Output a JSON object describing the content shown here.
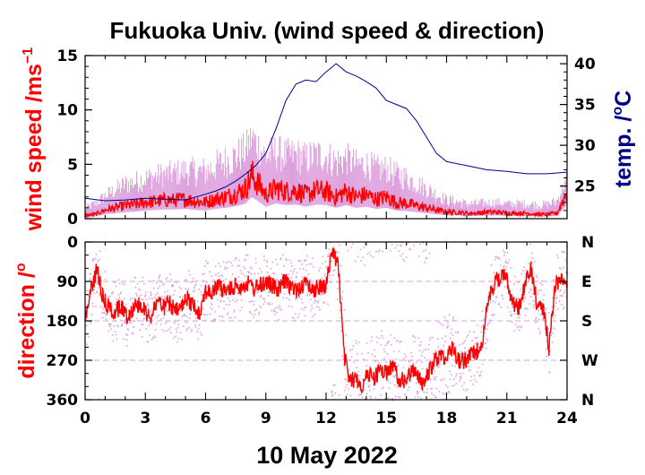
{
  "chart_data": [
    {
      "type": "line",
      "panel": "top",
      "title": "Fukuoka Univ. (wind speed & direction)",
      "ylabel": "wind speed /ms",
      "ylabel_superscript": "−1",
      "ylabel_right": "temp. /",
      "ylabel_right_superscript": "o",
      "ylabel_right_unit": "C",
      "xlim": [
        0,
        24
      ],
      "ylim": [
        0,
        15
      ],
      "ylim_right": [
        21,
        41
      ],
      "yticks": [
        "0",
        "5",
        "10",
        "15"
      ],
      "yticks_right": [
        "25",
        "30",
        "35",
        "40"
      ],
      "grid": false,
      "series": [
        {
          "role": "wind speed gust (spread)",
          "color": "#dda0dd",
          "x": [
            0,
            1,
            2,
            3,
            4,
            5,
            6,
            7,
            8,
            9,
            10,
            11,
            12,
            13,
            14,
            15,
            16,
            17,
            18,
            19,
            20,
            21,
            22,
            23,
            24
          ],
          "y": [
            1.5,
            3.0,
            4.5,
            5.0,
            5.5,
            6.0,
            6.5,
            7.5,
            8.0,
            8.0,
            7.5,
            7.5,
            7.5,
            7.0,
            6.5,
            6.0,
            5.5,
            4.0,
            2.5,
            2.0,
            2.0,
            2.0,
            2.0,
            2.0,
            3.0
          ]
        },
        {
          "role": "wind speed",
          "color": "#ff0000",
          "x": [
            0,
            0.5,
            1,
            1.5,
            2,
            2.5,
            3,
            3.5,
            4,
            4.5,
            5,
            5.5,
            6,
            6.5,
            7,
            7.5,
            8,
            8.3,
            8.7,
            9,
            9.5,
            10,
            10.5,
            11,
            11.5,
            12,
            12.5,
            13,
            13.5,
            14,
            14.5,
            15,
            15.5,
            16,
            16.5,
            17,
            17.5,
            18,
            18.5,
            19,
            19.5,
            20,
            20.5,
            21,
            21.5,
            22,
            22.5,
            23,
            23.5,
            24
          ],
          "y": [
            0.3,
            0.4,
            0.8,
            1.0,
            1.2,
            1.3,
            1.5,
            1.6,
            1.7,
            1.7,
            1.8,
            1.6,
            1.5,
            1.8,
            2.0,
            2.3,
            2.8,
            4.0,
            3.0,
            2.2,
            2.8,
            2.5,
            2.6,
            2.2,
            2.6,
            2.5,
            2.0,
            2.5,
            2.0,
            2.2,
            1.8,
            2.0,
            1.5,
            1.4,
            1.2,
            1.0,
            0.8,
            0.6,
            0.6,
            0.5,
            0.5,
            0.6,
            0.6,
            0.5,
            0.5,
            0.5,
            0.4,
            0.4,
            0.5,
            2.5
          ]
        },
        {
          "role": "temperature",
          "axis": "right",
          "color": "#00008b",
          "x": [
            0,
            1,
            2,
            3,
            4,
            5,
            6,
            6.5,
            7,
            7.5,
            8,
            8.5,
            9,
            9.5,
            10,
            10.5,
            11,
            11.5,
            12,
            12.5,
            13,
            13.5,
            14,
            14.5,
            15,
            15.5,
            16,
            16.5,
            17,
            17.5,
            18,
            19,
            20,
            21,
            22,
            23,
            24
          ],
          "y": [
            23.5,
            23.2,
            23.3,
            23.5,
            23.4,
            23.3,
            24.0,
            24.4,
            24.9,
            25.6,
            26.5,
            27.5,
            29.0,
            32.0,
            35.5,
            37.5,
            38.0,
            37.8,
            39.0,
            40.0,
            39.0,
            38.5,
            37.8,
            37.0,
            35.5,
            35.0,
            34.5,
            33.0,
            31.0,
            29.0,
            28.0,
            27.5,
            27.0,
            26.8,
            26.5,
            26.5,
            26.7
          ]
        }
      ]
    },
    {
      "type": "scatter",
      "panel": "bottom",
      "ylabel": "direction /",
      "ylabel_superscript": "o",
      "xlabel": "10 May 2022",
      "xlim": [
        0,
        24
      ],
      "ylim": [
        0,
        360
      ],
      "y_reversed": true,
      "xticks": [
        "0",
        "3",
        "6",
        "9",
        "12",
        "15",
        "18",
        "21",
        "24"
      ],
      "yticks": [
        "0",
        "90",
        "180",
        "270",
        "360"
      ],
      "yticks_right": [
        "N",
        "E",
        "S",
        "W",
        "N"
      ],
      "grid": "dashed horizontal",
      "series": [
        {
          "role": "direction scatter",
          "color": "#dda0dd",
          "x": [
            0,
            1,
            2,
            3,
            4,
            5,
            6,
            7,
            8,
            9,
            10,
            11,
            12,
            13,
            14,
            15,
            16,
            17,
            18,
            19,
            20,
            21,
            22,
            23,
            24
          ],
          "y": [
            150,
            120,
            140,
            150,
            150,
            140,
            100,
            110,
            100,
            100,
            100,
            110,
            90,
            310,
            300,
            330,
            280,
            250,
            230,
            150,
            110,
            150,
            130,
            160,
            200
          ]
        },
        {
          "role": "direction",
          "color": "#ff0000",
          "x": [
            0,
            0.3,
            0.6,
            0.9,
            1.2,
            1.5,
            1.8,
            2.1,
            2.4,
            2.7,
            3.0,
            3.3,
            3.6,
            3.9,
            4.2,
            4.5,
            4.8,
            5.1,
            5.4,
            5.7,
            6.0,
            6.3,
            6.6,
            6.9,
            7.2,
            7.5,
            7.8,
            8.1,
            8.4,
            8.7,
            9.0,
            9.3,
            9.6,
            9.9,
            10.2,
            10.5,
            10.8,
            11.1,
            11.4,
            11.7,
            12.0,
            12.3,
            12.6,
            12.9,
            13.2,
            13.5,
            13.8,
            14.1,
            14.4,
            14.7,
            15.0,
            15.3,
            15.6,
            15.9,
            16.2,
            16.5,
            16.8,
            17.1,
            17.4,
            17.7,
            18.0,
            18.3,
            18.6,
            18.9,
            19.2,
            19.5,
            19.8,
            20.1,
            20.4,
            20.7,
            21.0,
            21.3,
            21.6,
            21.9,
            22.2,
            22.5,
            22.8,
            23.1,
            23.4,
            23.7,
            24.0
          ],
          "y": [
            180,
            110,
            60,
            130,
            150,
            160,
            145,
            170,
            150,
            140,
            160,
            170,
            130,
            150,
            140,
            160,
            150,
            130,
            145,
            160,
            110,
            120,
            100,
            110,
            110,
            100,
            100,
            95,
            105,
            100,
            90,
            100,
            110,
            90,
            100,
            110,
            100,
            95,
            110,
            100,
            100,
            20,
            50,
            260,
            320,
            310,
            330,
            300,
            310,
            290,
            300,
            280,
            310,
            320,
            300,
            290,
            330,
            300,
            270,
            260,
            260,
            240,
            270,
            270,
            260,
            250,
            220,
            130,
            90,
            80,
            80,
            140,
            150,
            100,
            60,
            140,
            150,
            240,
            100,
            80,
            90
          ]
        }
      ]
    }
  ]
}
